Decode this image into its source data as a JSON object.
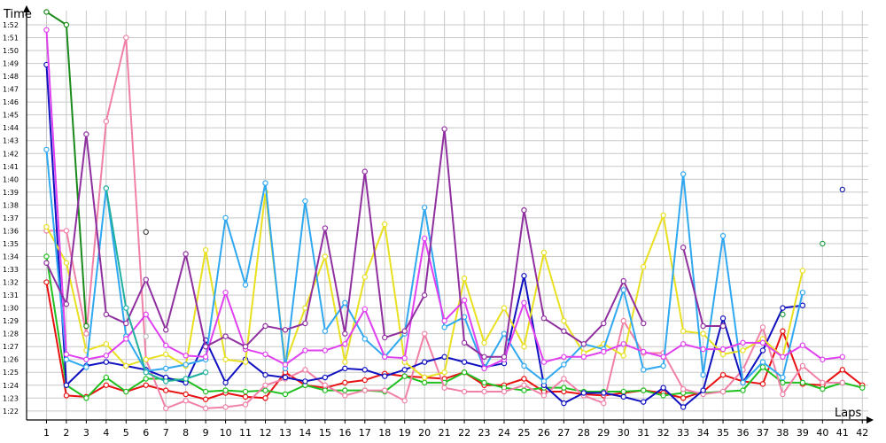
{
  "chart_data": {
    "type": "line",
    "ylabel": "Time",
    "xlabel": "Laps",
    "x": [
      1,
      2,
      3,
      4,
      5,
      6,
      7,
      8,
      9,
      10,
      11,
      12,
      13,
      14,
      15,
      16,
      17,
      18,
      19,
      20,
      21,
      22,
      23,
      24,
      25,
      26,
      27,
      28,
      29,
      30,
      31,
      32,
      33,
      34,
      35,
      36,
      37,
      38,
      39,
      40,
      41,
      42
    ],
    "xlim": [
      0,
      42.3
    ],
    "ylim": [
      81.3,
      113.1
    ],
    "yticks": [
      82,
      83,
      84,
      85,
      86,
      87,
      88,
      89,
      90,
      91,
      92,
      93,
      94,
      95,
      96,
      97,
      98,
      99,
      100,
      101,
      102,
      103,
      104,
      105,
      106,
      107,
      108,
      109,
      110,
      111,
      112
    ],
    "ytick_labels": [
      "1:22",
      "1:23",
      "1:24",
      "1:25",
      "1:26",
      "1:27",
      "1:28",
      "1:29",
      "1:30",
      "1:31",
      "1:32",
      "1:33",
      "1:34",
      "1:35",
      "1:36",
      "1:37",
      "1:38",
      "1:39",
      "1:40",
      "1:41",
      "1:42",
      "1:43",
      "1:44",
      "1:45",
      "1:46",
      "1:47",
      "1:48",
      "1:49",
      "1:50",
      "1:51",
      "1:52"
    ],
    "grid": true,
    "series": [
      {
        "color": "#e81010",
        "values": [
          92,
          83.2,
          83.1,
          84,
          83.5,
          84,
          83.6,
          83.3,
          82.9,
          83.4,
          83.1,
          83,
          85,
          84,
          83.8,
          84.2,
          84.4,
          84.9,
          84.7,
          84.6,
          84.5,
          85,
          84,
          84,
          84.5,
          83.5,
          83.5,
          83.3,
          83.2,
          83.4,
          83.6,
          83.4,
          83,
          83.5,
          84.8,
          84.3,
          84.1,
          88.2,
          84.1,
          84,
          85.2,
          84
        ]
      },
      {
        "color": "#20c020",
        "values": [
          94,
          84,
          83,
          84.6,
          83.5,
          84.5,
          84.5,
          84.4,
          83.5,
          83.6,
          83.5,
          83.6,
          83.3,
          84,
          83.6,
          83.6,
          83.6,
          83.5,
          84.7,
          84.2,
          84.2,
          85,
          84.2,
          83.8,
          83.6,
          83.8,
          83.8,
          83.5,
          83.5,
          83.5,
          83.6,
          83.2,
          83.4,
          83.4,
          83.5,
          83.6,
          85.4,
          84.2,
          84.2,
          83.7,
          84.2,
          83.8
        ]
      },
      {
        "color": "#f080a8",
        "values": [
          96,
          96,
          88,
          104.5,
          111,
          86,
          82.2,
          82.8,
          82.2,
          82.3,
          82.5,
          84,
          84.5,
          85.2,
          84,
          83.2,
          83.6,
          83.6,
          82.8,
          88,
          83.8,
          83.5,
          83.5,
          83.5,
          84,
          83.2,
          84.5,
          83.2,
          82.6,
          89,
          86.5,
          86.5,
          83.7,
          83.3,
          83.5,
          85.2,
          88.5,
          83.3,
          85.5,
          84.2,
          84.2,
          null
        ]
      },
      {
        "color": "#1a8a1a",
        "values": [
          113,
          112,
          88.6,
          null,
          null,
          null,
          null,
          null,
          null,
          null,
          null,
          null,
          null,
          null,
          null,
          null,
          null,
          null,
          null,
          null,
          null,
          null,
          null,
          null,
          null,
          null,
          null,
          null,
          null,
          null,
          null,
          null,
          null,
          null,
          null,
          null,
          null,
          null,
          null,
          null,
          null,
          null
        ]
      },
      {
        "color": "#1010c0",
        "values": [
          108.9,
          84,
          85.5,
          85.8,
          85.5,
          85.2,
          84.6,
          84.2,
          87.5,
          84.2,
          86,
          84.8,
          84.6,
          84.3,
          84.6,
          85.3,
          85.2,
          84.7,
          85.2,
          85.8,
          86.2,
          85.8,
          85.4,
          85.7,
          92.5,
          84,
          82.6,
          83.4,
          83.4,
          83.1,
          82.7,
          83.8,
          82.3,
          83.6,
          89.2,
          84.2,
          86.7,
          90,
          90.2,
          null,
          null,
          null
        ]
      },
      {
        "color": "#e8e020",
        "values": [
          96.3,
          93.5,
          86.7,
          87.2,
          85.5,
          86,
          86.4,
          85.5,
          94.5,
          86,
          85.8,
          99,
          85.7,
          90,
          94,
          85.8,
          92.4,
          96.5,
          85.8,
          84.6,
          85,
          92.3,
          87.3,
          90,
          87,
          94.3,
          89,
          86.5,
          87.2,
          86.3,
          93.2,
          97.2,
          88.2,
          88,
          86.4,
          86.7,
          87.6,
          86.2,
          92.9,
          null,
          null,
          null
        ]
      },
      {
        "color": "#30a8f0",
        "values": [
          102.3,
          86,
          85.4,
          99.3,
          87.8,
          85.1,
          85.3,
          85.6,
          86,
          97,
          91.8,
          99.7,
          85.3,
          98.3,
          88.2,
          90.4,
          87.6,
          86.2,
          88,
          97.8,
          88.5,
          89.3,
          85.3,
          88,
          85.5,
          84.3,
          85.6,
          87.2,
          86.8,
          91.4,
          85.2,
          85.5,
          100.4,
          84.8,
          95.6,
          84.2,
          85.8,
          84.6,
          91.2,
          null,
          null,
          null
        ]
      },
      {
        "color": "#e040f0",
        "values": [
          111.6,
          86.4,
          86,
          86.3,
          87.6,
          89.5,
          87.1,
          86.3,
          86.2,
          91.2,
          86.8,
          86.4,
          85.6,
          86.7,
          86.7,
          87.2,
          89.9,
          86.2,
          86.1,
          95.4,
          89,
          90.6,
          85.3,
          86,
          90.4,
          85.8,
          86.2,
          86.2,
          86.6,
          87.2,
          86.6,
          86.2,
          87.2,
          86.8,
          86.8,
          87.3,
          87.3,
          86.2,
          87.1,
          86,
          86.2,
          null
        ]
      },
      {
        "color": "#9030a0",
        "values": [
          93.5,
          90.3,
          103.5,
          89.5,
          88.8,
          92.2,
          88.3,
          94.2,
          87,
          87.8,
          87,
          88.6,
          88.3,
          88.8,
          96.2,
          88,
          100.6,
          87.7,
          88.2,
          91,
          103.9,
          87.3,
          86.2,
          86.2,
          97.6,
          89.2,
          88.2,
          87.2,
          88.8,
          92.1,
          88.8,
          null,
          94.7,
          88.6,
          88.6,
          null,
          null,
          null,
          null,
          null,
          null,
          null
        ]
      },
      {
        "color": "#20b0a0",
        "values": [
          null,
          null,
          null,
          99.3,
          90,
          85,
          84.3,
          84.5,
          85,
          null,
          null,
          null,
          null,
          null,
          null,
          null,
          null,
          null,
          null,
          null,
          null,
          null,
          null,
          null,
          null,
          null,
          null,
          null,
          null,
          null,
          null,
          null,
          null,
          null,
          null,
          null,
          null,
          null,
          null,
          null,
          null,
          null
        ]
      },
      {
        "color": "#c0c0c0",
        "values": [
          null,
          null,
          null,
          null,
          null,
          87.8,
          null,
          null,
          null,
          null,
          null,
          null,
          null,
          null,
          null,
          null,
          null,
          null,
          null,
          null,
          null,
          null,
          null,
          null,
          null,
          null,
          null,
          null,
          null,
          null,
          null,
          null,
          null,
          null,
          null,
          null,
          null,
          null,
          null,
          null,
          null,
          null
        ]
      },
      {
        "color": "#404040",
        "values": [
          null,
          null,
          null,
          null,
          null,
          95.9,
          null,
          null,
          null,
          null,
          null,
          null,
          null,
          null,
          null,
          null,
          null,
          null,
          null,
          null,
          null,
          null,
          null,
          null,
          null,
          null,
          null,
          null,
          null,
          null,
          null,
          null,
          null,
          null,
          null,
          null,
          null,
          null,
          null,
          null,
          null,
          null
        ]
      },
      {
        "color": "#20a040",
        "values": [
          null,
          null,
          null,
          null,
          null,
          null,
          null,
          null,
          null,
          null,
          null,
          null,
          null,
          null,
          null,
          null,
          null,
          null,
          null,
          null,
          null,
          null,
          null,
          null,
          null,
          null,
          null,
          null,
          null,
          null,
          null,
          null,
          null,
          null,
          null,
          null,
          null,
          89.5,
          null,
          95,
          null,
          null
        ]
      },
      {
        "color": "#2020b0",
        "values": [
          null,
          null,
          null,
          null,
          null,
          null,
          null,
          null,
          null,
          null,
          null,
          null,
          null,
          null,
          null,
          null,
          null,
          null,
          null,
          null,
          null,
          null,
          null,
          null,
          null,
          null,
          null,
          null,
          null,
          null,
          null,
          null,
          null,
          null,
          null,
          null,
          null,
          null,
          null,
          null,
          99.2,
          null
        ]
      }
    ]
  }
}
